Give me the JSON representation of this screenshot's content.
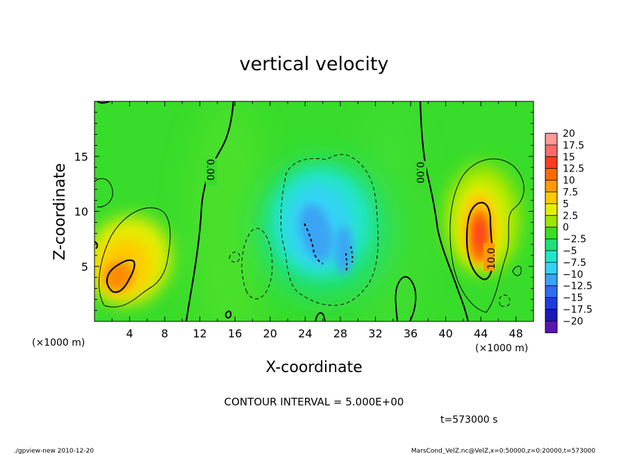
{
  "chart_data": {
    "type": "heatmap",
    "title": "vertical velocity",
    "xlabel": "X-coordinate",
    "ylabel": "Z-coordinate",
    "x_unit": "(×1000 m)",
    "y_unit": "(×1000 m)",
    "xlim": [
      0,
      50
    ],
    "ylim": [
      0,
      20
    ],
    "x_ticks": [
      4,
      8,
      12,
      16,
      20,
      24,
      28,
      32,
      36,
      40,
      44,
      48
    ],
    "y_ticks": [
      5,
      10,
      15
    ],
    "colorbar": {
      "labels": [
        "20",
        "17.5",
        "15",
        "12.5",
        "10",
        "7.5",
        "5",
        "2.5",
        "0",
        "−2.5",
        "−5",
        "−7.5",
        "−10",
        "−12.5",
        "−15",
        "−17.5",
        "−20"
      ],
      "colors": [
        "#ff9a9a",
        "#ff6b6b",
        "#ff3c20",
        "#ff6a00",
        "#ff9a00",
        "#ffc800",
        "#e6ee00",
        "#9ee600",
        "#3ddc22",
        "#1ee07a",
        "#22e6c8",
        "#36d2f6",
        "#3aa4f4",
        "#2f6cf0",
        "#1e3cda",
        "#1a1ab4",
        "#5a14b4"
      ]
    },
    "contour_interval_text": "CONTOUR INTERVAL = 5.000E+00",
    "contour_labels": [
      "0.00",
      "0.00",
      "10.0"
    ],
    "time_text": "t=573000 s"
  },
  "footer": {
    "left": "./gpview-new  2010-12-20",
    "right": "MarsCond_VelZ.nc@VelZ,x=0:50000,z=0:20000,t=573000"
  }
}
